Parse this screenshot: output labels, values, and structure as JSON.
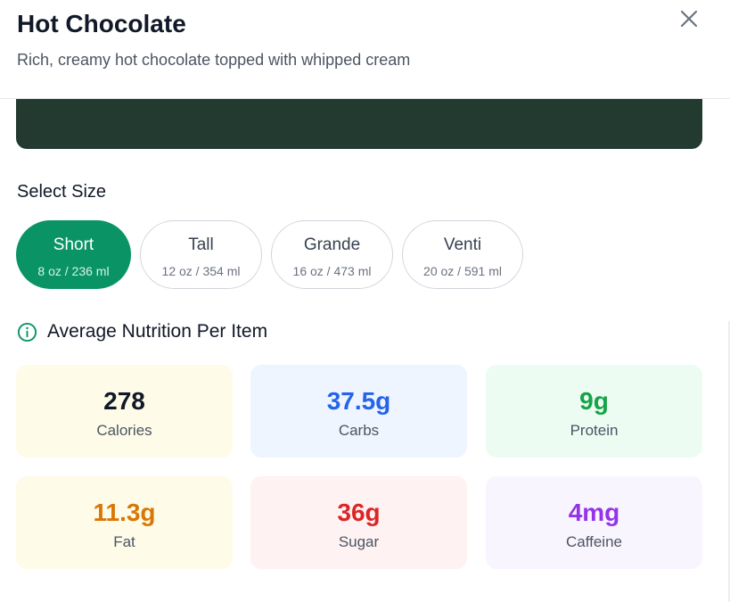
{
  "header": {
    "title": "Hot Chocolate",
    "subtitle": "Rich, creamy hot chocolate topped with whipped cream",
    "close_icon": "close-icon"
  },
  "sizes": {
    "label": "Select Size",
    "selected": "Short",
    "options": [
      {
        "name": "Short",
        "volume": "8 oz / 236 ml"
      },
      {
        "name": "Tall",
        "volume": "12 oz / 354 ml"
      },
      {
        "name": "Grande",
        "volume": "16 oz / 473 ml"
      },
      {
        "name": "Venti",
        "volume": "20 oz / 591 ml"
      }
    ]
  },
  "nutrition": {
    "title": "Average Nutrition Per Item",
    "icon": "info-icon",
    "items": [
      {
        "value": "278",
        "label": "Calories",
        "color": "#111827",
        "bg": "#fefbe8"
      },
      {
        "value": "37.5g",
        "label": "Carbs",
        "color": "#2563eb",
        "bg": "#eef5ff"
      },
      {
        "value": "9g",
        "label": "Protein",
        "color": "#16a34a",
        "bg": "#edfcf2"
      },
      {
        "value": "11.3g",
        "label": "Fat",
        "color": "#d97706",
        "bg": "#fffbe9"
      },
      {
        "value": "36g",
        "label": "Sugar",
        "color": "#dc2626",
        "bg": "#fef2f2"
      },
      {
        "value": "4mg",
        "label": "Caffeine",
        "color": "#9333ea",
        "bg": "#f9f5ff"
      }
    ]
  },
  "colors": {
    "accent": "#0a9466",
    "banner": "#223a30"
  }
}
